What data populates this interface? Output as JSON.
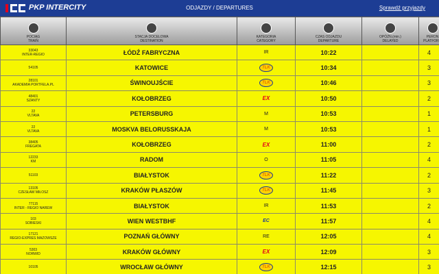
{
  "header": {
    "brand": "PKP INTERCITY",
    "title": "ODJAZDY / DEPARTURES",
    "link": "Sprawdź przyjazdy"
  },
  "table": {
    "columns": [
      {
        "pl": "POCIĄG",
        "en": "TRAIN"
      },
      {
        "pl": "STACJA DOCELOWA",
        "en": "DESTINATION"
      },
      {
        "pl": "KATEGORIA",
        "en": "CATEGORY"
      },
      {
        "pl": "CZAS ODJAZDU",
        "en": "DEPARTURE"
      },
      {
        "pl": "OPÓŹN.(min.)",
        "en": "DELAYED"
      },
      {
        "pl": "PERON",
        "en": "PLATFORM"
      }
    ],
    "rows": [
      {
        "number": "33043",
        "name": "INTER-REGIO",
        "destination": "ŁÓDŹ FABRYCZNA",
        "category": "IR",
        "departure": "10:22",
        "platform": "4"
      },
      {
        "number": "54105",
        "name": null,
        "destination": "KATOWICE",
        "category": "TLK",
        "departure": "10:34",
        "platform": "3"
      },
      {
        "number": "28101",
        "name": "AKADEMIA PORTFELA.PL",
        "destination": "ŚWINOUJŚCIE",
        "category": "TLK",
        "departure": "10:46",
        "platform": "3"
      },
      {
        "number": "48401",
        "name": "SZANTY",
        "destination": "KOŁOBRZEG",
        "category": "EX",
        "departure": "10:50",
        "platform": "2"
      },
      {
        "number": "22",
        "name": "VLTAVA",
        "destination": "PETERSBURG",
        "category": "M",
        "departure": "10:53",
        "platform": "1"
      },
      {
        "number": "22",
        "name": "VLTAVA",
        "destination": "MOSKVA BELORUSSKAJA",
        "category": "M",
        "departure": "10:53",
        "platform": "1"
      },
      {
        "number": "38405",
        "name": "FREGATA",
        "destination": "KOŁOBRZEG",
        "category": "EX",
        "departure": "11:00",
        "platform": "2"
      },
      {
        "number": "12233",
        "name": "KM",
        "destination": "RADOM",
        "category": "O",
        "departure": "11:05",
        "platform": "4"
      },
      {
        "number": "51103",
        "name": null,
        "destination": "BIAŁYSTOK",
        "category": "TLK",
        "departure": "11:22",
        "platform": "2"
      },
      {
        "number": "13105",
        "name": "CZESŁAW MIŁOSZ",
        "destination": "KRAKÓW PŁASZÓW",
        "category": "TLK",
        "departure": "11:45",
        "platform": "3"
      },
      {
        "number": "77115",
        "name": "INTER - REGIO NAREW",
        "destination": "BIAŁYSTOK",
        "category": "IR",
        "departure": "11:53",
        "platform": "2"
      },
      {
        "number": "103",
        "name": "SOBIESKI",
        "destination": "WIEN WESTBHF",
        "category": "EC",
        "departure": "11:57",
        "platform": "4"
      },
      {
        "number": "17121",
        "name": "REGIO-EXPRES MAZOWSZE",
        "destination": "POZNAŃ GŁÓWNY",
        "category": "RE",
        "departure": "12:05",
        "platform": "4"
      },
      {
        "number": "5303",
        "name": "NORWID",
        "destination": "KRAKÓW GŁÓWNY",
        "category": "EX",
        "departure": "12:09",
        "platform": "3"
      },
      {
        "number": "10105",
        "name": null,
        "destination": "WROCŁAW GŁÓWNY",
        "category": "TLK",
        "departure": "12:15",
        "platform": "3"
      }
    ]
  }
}
